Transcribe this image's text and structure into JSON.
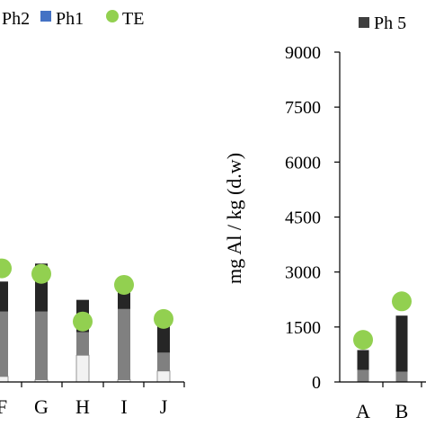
{
  "chart_data": [
    {
      "type": "bar",
      "stacked": true,
      "cropped": "left",
      "legend": {
        "entries": [
          {
            "label": "Ph2",
            "color": "#3f3f3f"
          },
          {
            "label": "Ph1",
            "color": "#4472c4"
          },
          {
            "label": "TE",
            "color": "#92d050"
          }
        ],
        "placement": "top"
      },
      "categories": [
        "F",
        "G",
        "H",
        "I",
        "J"
      ],
      "series": [
        {
          "name": "",
          "color": "#f2f2f2",
          "values": [
            150,
            60,
            730,
            60,
            300
          ]
        },
        {
          "name": "",
          "color": "#808080",
          "values": [
            1770,
            1860,
            630,
            1930,
            500
          ]
        },
        {
          "name": "",
          "color": "#262626",
          "values": [
            820,
            1310,
            880,
            640,
            820
          ]
        }
      ],
      "TE": [
        3100,
        2950,
        1650,
        2650,
        1720
      ],
      "ylim": [
        0,
        9000
      ],
      "grid": false
    },
    {
      "type": "bar",
      "stacked": true,
      "cropped": "right",
      "legend": {
        "entries": [
          {
            "label": "Ph 5",
            "color": "#3f3f3f"
          }
        ],
        "placement": "top"
      },
      "ylabel": "mg Al / kg (d.w)",
      "yticks": [
        "0",
        "1500",
        "3000",
        "4500",
        "6000",
        "7500",
        "9000"
      ],
      "ylim": [
        0,
        9000
      ],
      "categories": [
        "A",
        "B"
      ],
      "series": [
        {
          "name": "",
          "color": "#808080",
          "values": [
            330,
            280
          ]
        },
        {
          "name": "",
          "color": "#262626",
          "values": [
            540,
            1530
          ]
        }
      ],
      "TE": [
        1150,
        2200
      ],
      "grid": false
    }
  ]
}
